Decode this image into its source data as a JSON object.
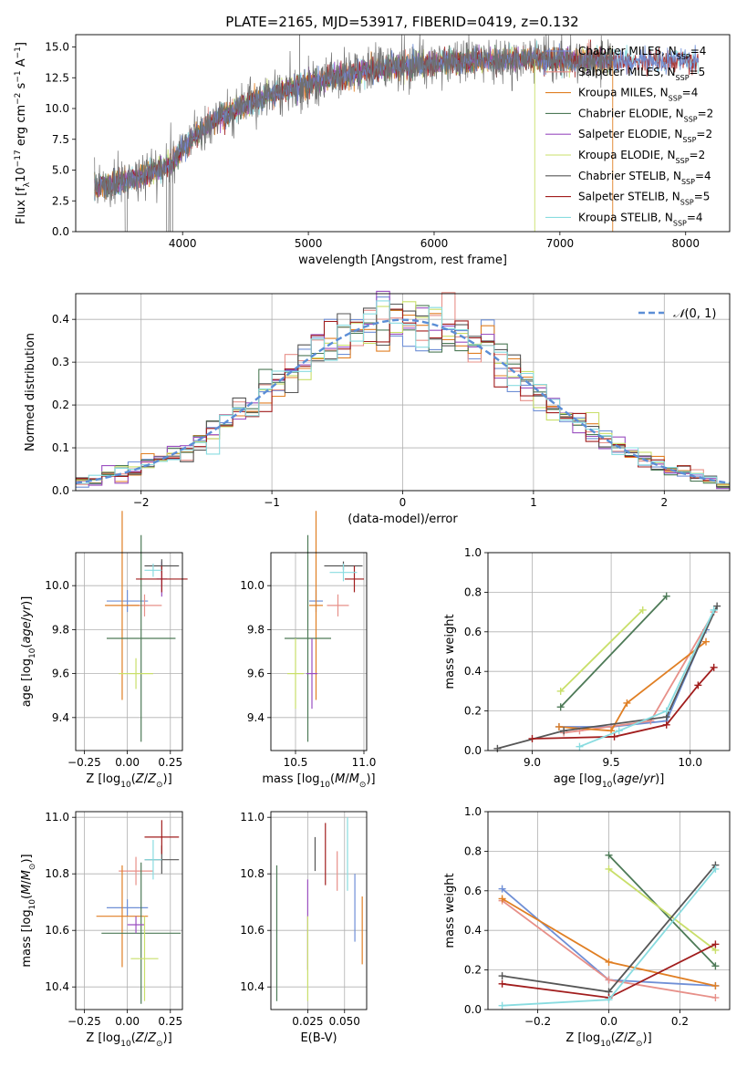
{
  "figure": {
    "title": "PLATE=2165, MJD=53917, FIBERID=0419, z=0.132"
  },
  "colors": {
    "cm": "#6f8fd6",
    "sm": "#e79089",
    "km": "#e07f24",
    "ce": "#4d7a57",
    "se": "#9a4fc0",
    "ke": "#c9df6a",
    "cs": "#565656",
    "ss": "#a11d1d",
    "ks": "#89dce0",
    "grid": "#b0b0b0",
    "normal": "#5b8ed6"
  },
  "legend_spec": [
    {
      "label": "Chabrier MILES, N",
      "sub": "SSP",
      "tail": "=4",
      "color_key": "cm"
    },
    {
      "label": "Salpeter MILES, N",
      "sub": "SSP",
      "tail": "=5",
      "color_key": "sm"
    },
    {
      "label": "Kroupa MILES, N",
      "sub": "SSP",
      "tail": "=4",
      "color_key": "km"
    },
    {
      "label": "Chabrier ELODIE, N",
      "sub": "SSP",
      "tail": "=2",
      "color_key": "ce"
    },
    {
      "label": "Salpeter ELODIE, N",
      "sub": "SSP",
      "tail": "=2",
      "color_key": "se"
    },
    {
      "label": "Kroupa ELODIE, N",
      "sub": "SSP",
      "tail": "=2",
      "color_key": "ke"
    },
    {
      "label": "Chabrier STELIB, N",
      "sub": "SSP",
      "tail": "=4",
      "color_key": "cs"
    },
    {
      "label": "Salpeter STELIB, N",
      "sub": "SSP",
      "tail": "=5",
      "color_key": "ss"
    },
    {
      "label": "Kroupa STELIB, N",
      "sub": "SSP",
      "tail": "=4",
      "color_key": "ks"
    }
  ],
  "chart_data": [
    {
      "id": "spectrum",
      "type": "line",
      "xlabel": "wavelength [Angstrom, rest frame]",
      "ylabel": "Flux [f_λ 10^-17 erg cm^-2 s^-1 A^-1]",
      "xlim": [
        3150,
        8350
      ],
      "ylim": [
        0,
        16
      ],
      "xticks": [
        4000,
        5000,
        6000,
        7000,
        8000
      ],
      "yticks": [
        0,
        2.5,
        5.0,
        7.5,
        10.0,
        12.5,
        15.0
      ],
      "grid": false,
      "legend_position": "right",
      "continuum_x": [
        3300,
        3500,
        3700,
        3900,
        4100,
        4300,
        4600,
        4900,
        5200,
        5500,
        5800,
        6100,
        6400,
        6700,
        7000,
        7300,
        7600,
        7900,
        8100
      ],
      "continuum_y": [
        3.7,
        4.0,
        4.6,
        5.5,
        7.8,
        9.3,
        10.8,
        11.8,
        12.5,
        13.1,
        13.5,
        13.8,
        13.9,
        14.0,
        14.0,
        13.9,
        13.8,
        13.9,
        13.9
      ]
    },
    {
      "id": "residuals",
      "type": "histogram",
      "xlabel": "(data-model)/error",
      "ylabel": "Normed distribution",
      "xlim": [
        -2.5,
        2.5
      ],
      "ylim": [
        0,
        0.46
      ],
      "xticks": [
        -2,
        -1,
        0,
        1,
        2
      ],
      "yticks": [
        0.0,
        0.1,
        0.2,
        0.3,
        0.4
      ],
      "grid": true,
      "legend": [
        "N(0,1)"
      ],
      "legend_position": "top-right",
      "bin_width": 0.1
    },
    {
      "id": "z-age",
      "type": "errorbar",
      "xlabel": "Z [log10(Z/Z_sun)]",
      "ylabel": "age [log10(age/yr)]",
      "xlim": [
        -0.3,
        0.32
      ],
      "ylim": [
        9.25,
        10.15
      ],
      "xticks": [
        -0.25,
        0.0,
        0.25
      ],
      "yticks": [
        9.4,
        9.6,
        9.8,
        10.0
      ],
      "grid": true,
      "points": [
        {
          "k": "cm",
          "x": 0.0,
          "xe": 0.12,
          "y": 9.93,
          "ye": 0.05
        },
        {
          "k": "sm",
          "x": 0.1,
          "xe": 0.1,
          "y": 9.91,
          "ye": 0.05
        },
        {
          "k": "km",
          "x": -0.03,
          "xe": 0.1,
          "y": 9.91,
          "ye": 0.43
        },
        {
          "k": "ce",
          "x": 0.08,
          "xe": 0.2,
          "y": 9.76,
          "ye": 0.47
        },
        {
          "k": "se",
          "x": 0.2,
          "xe": 0.03,
          "y": 10.03,
          "ye": 0.08
        },
        {
          "k": "ke",
          "x": 0.05,
          "xe": 0.1,
          "y": 9.6,
          "ye": 0.07
        },
        {
          "k": "cs",
          "x": 0.2,
          "xe": 0.1,
          "y": 10.09,
          "ye": 0.03
        },
        {
          "k": "ss",
          "x": 0.2,
          "xe": 0.15,
          "y": 10.03,
          "ye": 0.06
        },
        {
          "k": "ks",
          "x": 0.15,
          "xe": 0.05,
          "y": 10.07,
          "ye": 0.03
        }
      ]
    },
    {
      "id": "mass-age",
      "type": "errorbar",
      "xlabel": "mass [log10(M/M_sun)]",
      "ylabel": "",
      "xlim": [
        10.32,
        11.02
      ],
      "ylim": [
        9.25,
        10.15
      ],
      "xticks": [
        10.5,
        11.0
      ],
      "yticks": [
        9.4,
        9.6,
        9.8,
        10.0
      ],
      "grid": true,
      "points": [
        {
          "k": "cm",
          "x": 10.65,
          "xe": 0.05,
          "y": 9.93,
          "ye": 0.05
        },
        {
          "k": "sm",
          "x": 10.81,
          "xe": 0.08,
          "y": 9.91,
          "ye": 0.05
        },
        {
          "k": "km",
          "x": 10.65,
          "xe": 0.05,
          "y": 9.91,
          "ye": 0.43
        },
        {
          "k": "ce",
          "x": 10.59,
          "xe": 0.17,
          "y": 9.76,
          "ye": 0.47
        },
        {
          "k": "se",
          "x": 10.62,
          "xe": 0.04,
          "y": 9.6,
          "ye": 0.16
        },
        {
          "k": "ke",
          "x": 10.5,
          "xe": 0.06,
          "y": 9.6,
          "ye": 0.16
        },
        {
          "k": "cs",
          "x": 10.85,
          "xe": 0.14,
          "y": 10.09,
          "ye": 0.02
        },
        {
          "k": "ss",
          "x": 10.93,
          "xe": 0.07,
          "y": 10.03,
          "ye": 0.06
        },
        {
          "k": "ks",
          "x": 10.85,
          "xe": 0.1,
          "y": 10.06,
          "ye": 0.04
        }
      ]
    },
    {
      "id": "age-weight",
      "type": "line",
      "xlabel": "age [log10(age/yr)]",
      "ylabel": "mass weight",
      "xlim": [
        8.72,
        10.25
      ],
      "ylim": [
        0,
        1
      ],
      "xticks": [
        9.0,
        9.5,
        10.0
      ],
      "yticks": [
        0.0,
        0.2,
        0.4,
        0.6,
        0.8,
        1.0
      ],
      "grid": true,
      "series": [
        {
          "k": "cm",
          "x": [
            9.17,
            9.5,
            9.85,
            10.1
          ],
          "y": [
            0.12,
            0.12,
            0.15,
            0.61
          ]
        },
        {
          "k": "sm",
          "x": [
            9.2,
            9.3,
            9.75,
            10.15
          ],
          "y": [
            0.09,
            0.1,
            0.15,
            0.7
          ]
        },
        {
          "k": "km",
          "x": [
            9.17,
            9.5,
            9.6,
            10.1
          ],
          "y": [
            0.12,
            0.1,
            0.24,
            0.55
          ]
        },
        {
          "k": "ce",
          "x": [
            9.18,
            9.85
          ],
          "y": [
            0.22,
            0.78
          ]
        },
        {
          "k": "ke",
          "x": [
            9.18,
            9.7
          ],
          "y": [
            0.3,
            0.71
          ]
        },
        {
          "k": "cs",
          "x": [
            8.78,
            9.2,
            9.85,
            10.17
          ],
          "y": [
            0.01,
            0.1,
            0.17,
            0.73
          ]
        },
        {
          "k": "ss",
          "x": [
            9.0,
            9.52,
            9.85,
            10.05,
            10.15
          ],
          "y": [
            0.06,
            0.07,
            0.13,
            0.33,
            0.42
          ]
        },
        {
          "k": "ks",
          "x": [
            9.3,
            9.55,
            9.85,
            10.15
          ],
          "y": [
            0.02,
            0.1,
            0.2,
            0.71
          ]
        }
      ]
    },
    {
      "id": "z-mass",
      "type": "errorbar",
      "xlabel": "Z [log10(Z/Z_sun)]",
      "ylabel": "mass [log10(M/M_sun)]",
      "xlim": [
        -0.3,
        0.32
      ],
      "ylim": [
        10.32,
        11.02
      ],
      "xticks": [
        -0.25,
        0.0,
        0.25
      ],
      "yticks": [
        10.4,
        10.6,
        10.8,
        11.0
      ],
      "grid": true,
      "points": [
        {
          "k": "cm",
          "x": 0.0,
          "xe": 0.12,
          "y": 10.68,
          "ye": 0.03
        },
        {
          "k": "sm",
          "x": 0.05,
          "xe": 0.1,
          "y": 10.81,
          "ye": 0.05
        },
        {
          "k": "km",
          "x": -0.03,
          "xe": 0.15,
          "y": 10.65,
          "ye": 0.18
        },
        {
          "k": "ce",
          "x": 0.08,
          "xe": 0.23,
          "y": 10.59,
          "ye": 0.25
        },
        {
          "k": "se",
          "x": 0.05,
          "xe": 0.05,
          "y": 10.62,
          "ye": 0.03
        },
        {
          "k": "ke",
          "x": 0.1,
          "xe": 0.08,
          "y": 10.5,
          "ye": 0.15
        },
        {
          "k": "cs",
          "x": 0.2,
          "xe": 0.1,
          "y": 10.85,
          "ye": 0.05
        },
        {
          "k": "ss",
          "x": 0.2,
          "xe": 0.1,
          "y": 10.93,
          "ye": 0.06
        },
        {
          "k": "ks",
          "x": 0.15,
          "xe": 0.05,
          "y": 10.85,
          "ye": 0.07
        }
      ]
    },
    {
      "id": "ebv-mass",
      "type": "errorbar",
      "xlabel": "E(B-V)",
      "ylabel": "",
      "xlim": [
        0.0,
        0.065
      ],
      "ylim": [
        10.32,
        11.02
      ],
      "xticks": [
        0.025,
        0.05
      ],
      "yticks": [
        10.4,
        10.6,
        10.8,
        11.0
      ],
      "grid": true,
      "points": [
        {
          "k": "cm",
          "x": 0.057,
          "xe": 0,
          "y": 10.68,
          "ye": 0.12
        },
        {
          "k": "sm",
          "x": 0.045,
          "xe": 0,
          "y": 10.81,
          "ye": 0.07
        },
        {
          "k": "km",
          "x": 0.062,
          "xe": 0,
          "y": 10.6,
          "ye": 0.12
        },
        {
          "k": "ce",
          "x": 0.004,
          "xe": 0,
          "y": 10.59,
          "ye": 0.24
        },
        {
          "k": "se",
          "x": 0.025,
          "xe": 0,
          "y": 10.62,
          "ye": 0.16
        },
        {
          "k": "ke",
          "x": 0.025,
          "xe": 0,
          "y": 10.5,
          "ye": 0.15
        },
        {
          "k": "cs",
          "x": 0.03,
          "xe": 0,
          "y": 10.87,
          "ye": 0.06
        },
        {
          "k": "ss",
          "x": 0.037,
          "xe": 0,
          "y": 10.87,
          "ye": 0.11
        },
        {
          "k": "ks",
          "x": 0.052,
          "xe": 0,
          "y": 10.87,
          "ye": 0.13
        }
      ]
    },
    {
      "id": "z-weight",
      "type": "line",
      "xlabel": "Z [log10(Z/Z_sun)]",
      "ylabel": "mass weight",
      "xlim": [
        -0.34,
        0.34
      ],
      "ylim": [
        0,
        1
      ],
      "xticks": [
        -0.2,
        0.0,
        0.2
      ],
      "yticks": [
        0.0,
        0.2,
        0.4,
        0.6,
        0.8,
        1.0
      ],
      "grid": true,
      "series": [
        {
          "k": "cm",
          "x": [
            -0.3,
            0.0,
            0.3
          ],
          "y": [
            0.61,
            0.15,
            0.12
          ]
        },
        {
          "k": "sm",
          "x": [
            -0.3,
            0.0,
            0.3
          ],
          "y": [
            0.55,
            0.15,
            0.06
          ]
        },
        {
          "k": "km",
          "x": [
            -0.3,
            0.0,
            0.3
          ],
          "y": [
            0.56,
            0.24,
            0.12
          ]
        },
        {
          "k": "ce",
          "x": [
            0.0,
            0.3
          ],
          "y": [
            0.78,
            0.22
          ]
        },
        {
          "k": "ke",
          "x": [
            0.0,
            0.3
          ],
          "y": [
            0.71,
            0.3
          ]
        },
        {
          "k": "cs",
          "x": [
            -0.3,
            0.0,
            0.3
          ],
          "y": [
            0.17,
            0.09,
            0.73
          ]
        },
        {
          "k": "ss",
          "x": [
            -0.3,
            0.0,
            0.3
          ],
          "y": [
            0.13,
            0.06,
            0.33
          ]
        },
        {
          "k": "ks",
          "x": [
            -0.3,
            0.0,
            0.3
          ],
          "y": [
            0.02,
            0.05,
            0.71
          ]
        }
      ]
    }
  ]
}
